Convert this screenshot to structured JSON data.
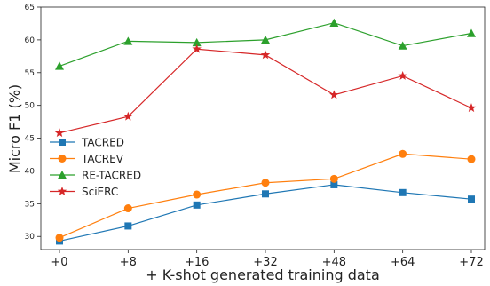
{
  "chart_data": {
    "type": "line",
    "title": "",
    "xlabel": "+ K-shot generated training data",
    "ylabel": "Micro F1 (%)",
    "categories": [
      "+0",
      "+8",
      "+16",
      "+32",
      "+48",
      "+64",
      "+72"
    ],
    "ylim": [
      28,
      65
    ],
    "yticks": [
      30,
      35,
      40,
      45,
      50,
      55,
      60,
      65
    ],
    "grid": false,
    "legend_position": "center-left",
    "series": [
      {
        "name": "TACRED",
        "color": "#1f77b4",
        "marker": "square",
        "values": [
          29.3,
          31.6,
          34.8,
          36.5,
          37.9,
          36.7,
          35.7
        ]
      },
      {
        "name": "TACREV",
        "color": "#ff7f0e",
        "marker": "circle",
        "values": [
          29.8,
          34.3,
          36.4,
          38.2,
          38.8,
          42.6,
          41.8
        ]
      },
      {
        "name": "RE-TACRED",
        "color": "#2ca02c",
        "marker": "triangle",
        "values": [
          56.0,
          59.8,
          59.6,
          60.0,
          62.6,
          59.1,
          61.0
        ]
      },
      {
        "name": "SciERC",
        "color": "#d62728",
        "marker": "star",
        "values": [
          45.8,
          48.3,
          58.6,
          57.7,
          51.6,
          54.5,
          49.6
        ]
      }
    ]
  }
}
